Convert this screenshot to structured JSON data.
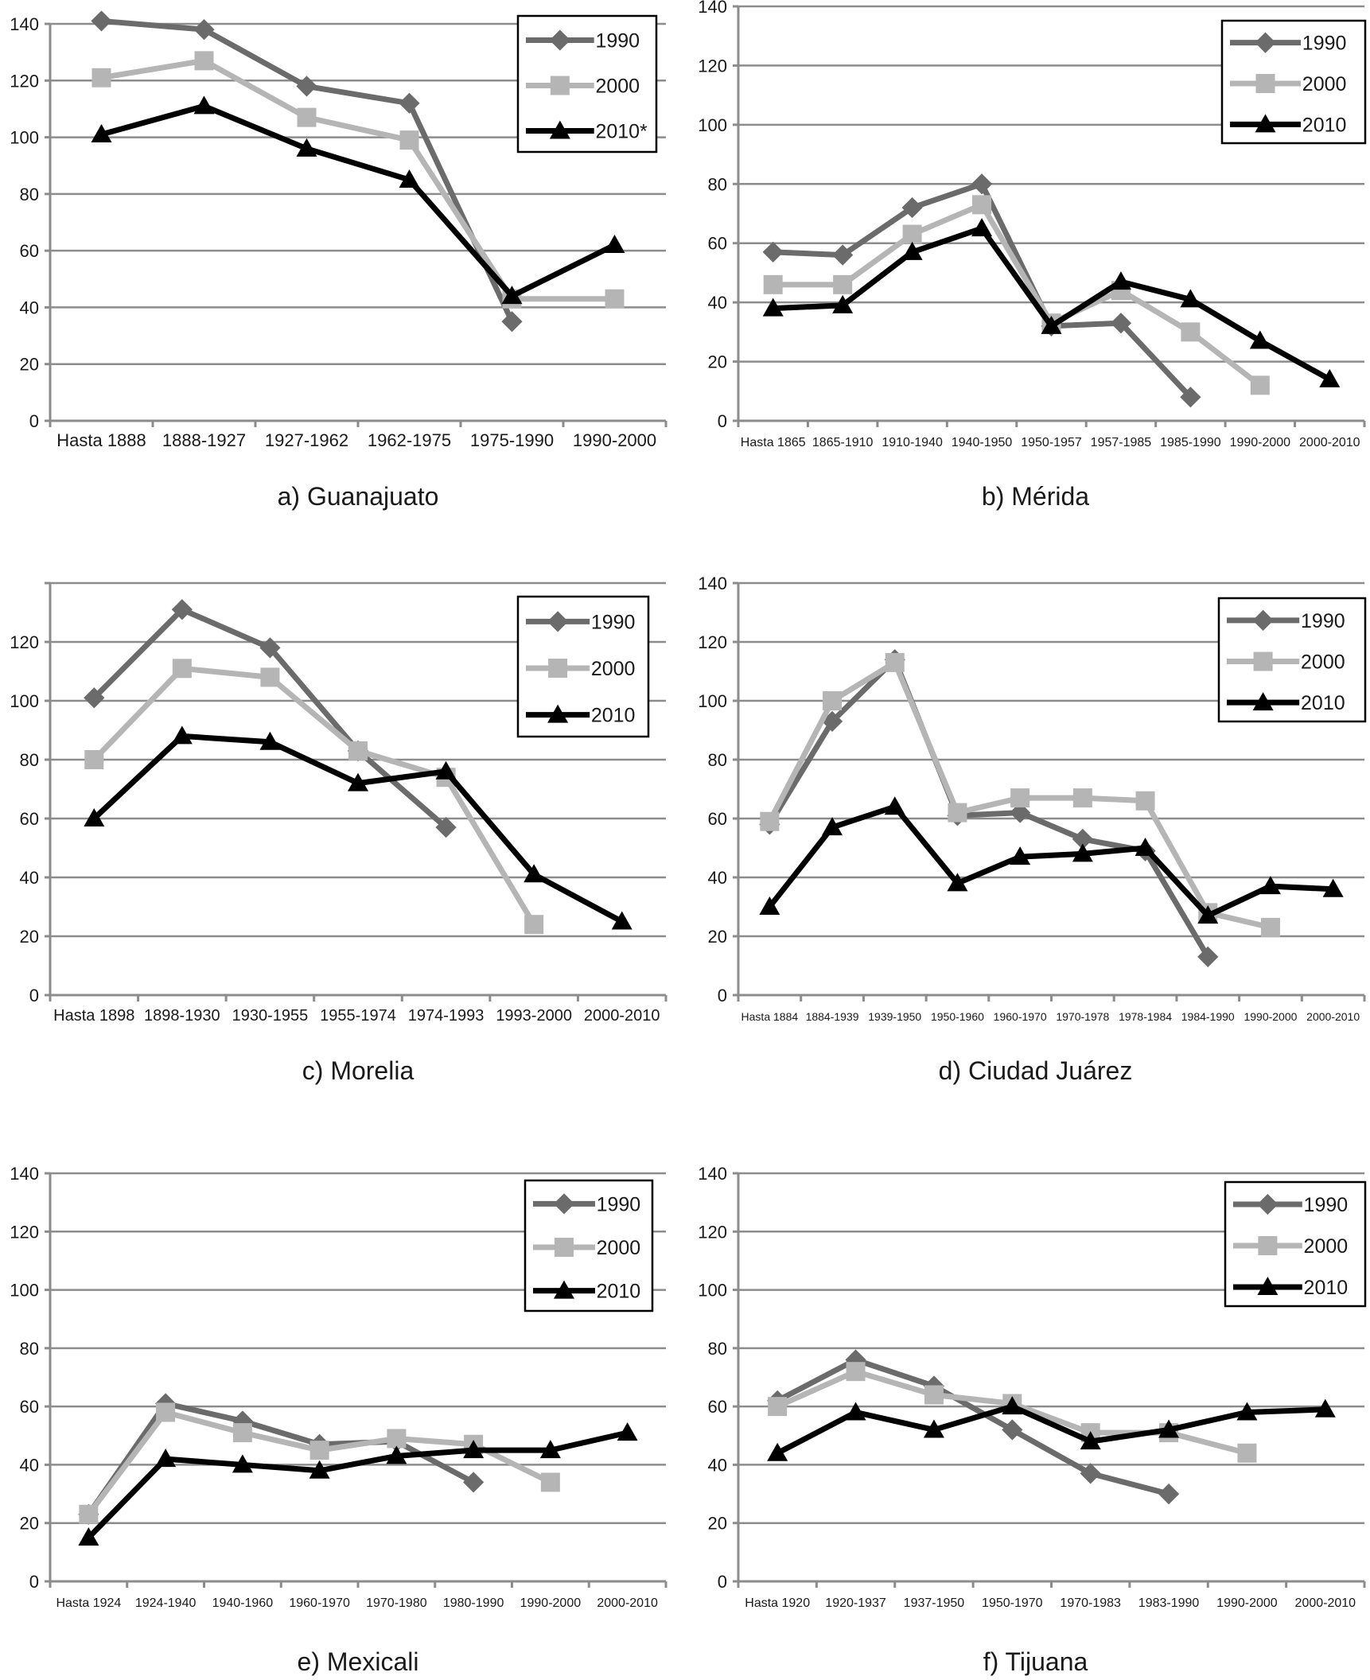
{
  "series_styles": [
    {
      "key": "1990",
      "color": "#6b6b6b",
      "marker": "diamond"
    },
    {
      "key": "2000",
      "color": "#b5b5b5",
      "marker": "square"
    },
    {
      "key": "2010",
      "color": "#000000",
      "marker": "triangle"
    }
  ],
  "chart_data": [
    {
      "type": "line",
      "title": "a) Guanajuato",
      "xlabel": "",
      "ylabel": "",
      "ylim": [
        0,
        140
      ],
      "yticks": [
        0,
        20,
        40,
        60,
        80,
        100,
        120,
        140
      ],
      "grid": true,
      "legend": "top-right",
      "categories": [
        "Hasta 1888",
        "1888-1927",
        "1927-1962",
        "1962-1975",
        "1975-1990",
        "1990-2000"
      ],
      "series": [
        {
          "name": "1990",
          "values": [
            141,
            138,
            118,
            112,
            35,
            null
          ]
        },
        {
          "name": "2000",
          "values": [
            121,
            127,
            107,
            99,
            43,
            43
          ]
        },
        {
          "name": "2010*",
          "values": [
            101,
            111,
            96,
            85,
            44,
            62
          ]
        }
      ]
    },
    {
      "type": "line",
      "title": "b) Mérida",
      "xlabel": "",
      "ylabel": "",
      "ylim": [
        0,
        140
      ],
      "yticks": [
        0,
        20,
        40,
        60,
        80,
        100,
        120,
        140
      ],
      "grid": true,
      "legend": "top-right",
      "categories": [
        "Hasta 1865",
        "1865-1910",
        "1910-1940",
        "1940-1950",
        "1950-1957",
        "1957-1985",
        "1985-1990",
        "1990-2000",
        "2000-2010"
      ],
      "series": [
        {
          "name": "1990",
          "values": [
            57,
            56,
            72,
            80,
            32,
            33,
            8,
            null,
            null
          ]
        },
        {
          "name": "2000",
          "values": [
            46,
            46,
            63,
            73,
            33,
            44,
            30,
            12,
            null
          ]
        },
        {
          "name": "2010",
          "values": [
            38,
            39,
            57,
            65,
            32,
            47,
            41,
            27,
            14
          ]
        }
      ]
    },
    {
      "type": "line",
      "title": "c) Morelia",
      "xlabel": "",
      "ylabel": "",
      "ylim": [
        0,
        140
      ],
      "yticks": [
        0,
        20,
        40,
        60,
        80,
        100,
        120
      ],
      "grid": true,
      "legend": "top-right",
      "categories": [
        "Hasta 1898",
        "1898-1930",
        "1930-1955",
        "1955-1974",
        "1974-1993",
        "1993-2000",
        "2000-2010"
      ],
      "series": [
        {
          "name": "1990",
          "values": [
            101,
            131,
            118,
            83,
            57,
            null,
            null
          ]
        },
        {
          "name": "2000",
          "values": [
            80,
            111,
            108,
            83,
            74,
            24,
            null
          ]
        },
        {
          "name": "2010",
          "values": [
            60,
            88,
            86,
            72,
            76,
            41,
            25
          ]
        }
      ]
    },
    {
      "type": "line",
      "title": "d) Ciudad Juárez",
      "xlabel": "",
      "ylabel": "",
      "ylim": [
        0,
        140
      ],
      "yticks": [
        0,
        20,
        40,
        60,
        80,
        100,
        120,
        140
      ],
      "grid": true,
      "legend": "top-right",
      "categories": [
        "Hasta 1884",
        "1884-1939",
        "1939-1950",
        "1950-1960",
        "1960-1970",
        "1970-1978",
        "1978-1984",
        "1984-1990",
        "1990-2000",
        "2000-2010"
      ],
      "series": [
        {
          "name": "1990",
          "values": [
            58,
            93,
            114,
            61,
            62,
            53,
            49,
            13,
            null,
            null
          ]
        },
        {
          "name": "2000",
          "values": [
            59,
            100,
            113,
            62,
            67,
            67,
            66,
            28,
            23,
            null
          ]
        },
        {
          "name": "2010",
          "values": [
            30,
            57,
            64,
            38,
            47,
            48,
            50,
            27,
            37,
            36
          ]
        }
      ]
    },
    {
      "type": "line",
      "title": "e) Mexicali",
      "xlabel": "",
      "ylabel": "",
      "ylim": [
        0,
        140
      ],
      "yticks": [
        0,
        20,
        40,
        60,
        80,
        100,
        120,
        140
      ],
      "grid": true,
      "legend": "top-right",
      "categories": [
        "Hasta 1924",
        "1924-1940",
        "1940-1960",
        "1960-1970",
        "1970-1980",
        "1980-1990",
        "1990-2000",
        "2000-2010"
      ],
      "series": [
        {
          "name": "1990",
          "values": [
            23,
            61,
            55,
            47,
            48,
            34,
            null,
            null
          ]
        },
        {
          "name": "2000",
          "values": [
            23,
            58,
            51,
            45,
            49,
            47,
            34,
            null
          ]
        },
        {
          "name": "2010",
          "values": [
            15,
            42,
            40,
            38,
            43,
            45,
            45,
            51
          ]
        }
      ]
    },
    {
      "type": "line",
      "title": "f) Tijuana",
      "xlabel": "",
      "ylabel": "",
      "ylim": [
        0,
        140
      ],
      "yticks": [
        0,
        20,
        40,
        60,
        80,
        100,
        120,
        140
      ],
      "grid": true,
      "legend": "top-right",
      "categories": [
        "Hasta 1920",
        "1920-1937",
        "1937-1950",
        "1950-1970",
        "1970-1983",
        "1983-1990",
        "1990-2000",
        "2000-2010"
      ],
      "series": [
        {
          "name": "1990",
          "values": [
            62,
            76,
            67,
            52,
            37,
            30,
            null,
            null
          ]
        },
        {
          "name": "2000",
          "values": [
            60,
            72,
            64,
            61,
            51,
            51,
            44,
            null
          ]
        },
        {
          "name": "2010",
          "values": [
            44,
            58,
            52,
            60,
            48,
            52,
            58,
            59
          ]
        }
      ]
    }
  ]
}
